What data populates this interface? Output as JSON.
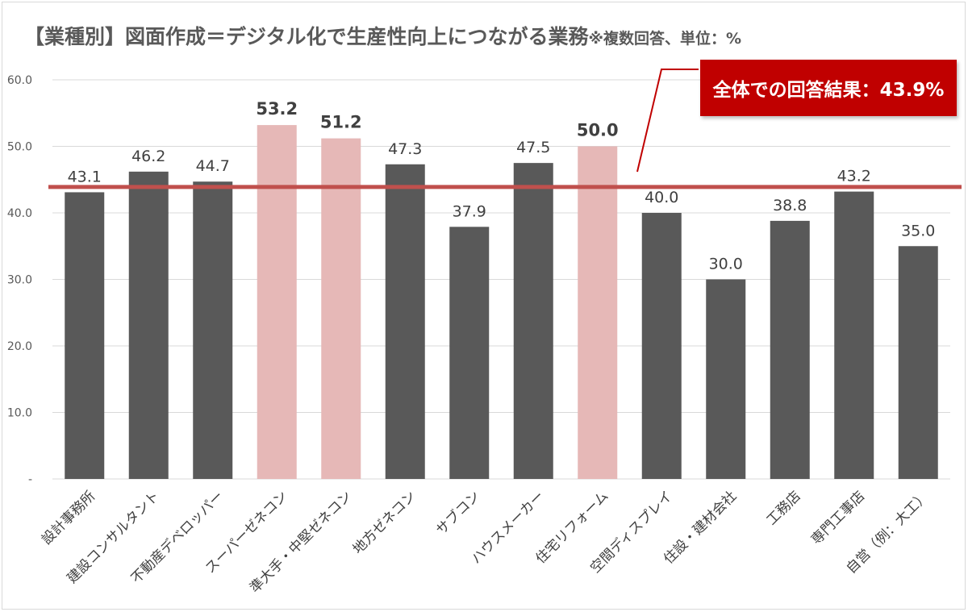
{
  "title": "【業種別】図面作成＝デジタル化で生産性向上につながる業務",
  "title_note": "※複数回答、単位：%",
  "callout": "全体での回答結果：43.9%",
  "colors": {
    "bar": "#595959",
    "highlight": "#e6b8b7",
    "average_line": "#c0504d",
    "callout_bg": "#c00000",
    "grid": "#d9d9d9"
  },
  "chart_data": {
    "type": "bar",
    "title": "【業種別】図面作成＝デジタル化で生産性向上につながる業務※複数回答、単位：%",
    "xlabel": "",
    "ylabel": "",
    "ylim": [
      0,
      60
    ],
    "yticks": [
      "-",
      "10.0",
      "20.0",
      "30.0",
      "40.0",
      "50.0",
      "60.0"
    ],
    "grid": true,
    "categories": [
      "設計事務所",
      "建設コンサルタント",
      "不動産デベロッパー",
      "スーパーゼネコン",
      "準大手・中堅ゼネコン",
      "地方ゼネコン",
      "サブコン",
      "ハウスメーカー",
      "住宅リフォーム",
      "空間ディスプレイ",
      "住設・建材会社",
      "工務店",
      "専門工事店",
      "自営（例：大工）"
    ],
    "values": [
      43.1,
      46.2,
      44.7,
      53.2,
      51.2,
      47.3,
      37.9,
      47.5,
      50.0,
      40.0,
      30.0,
      38.8,
      43.2,
      35.0
    ],
    "value_labels": [
      "43.1",
      "46.2",
      "44.7",
      "53.2",
      "51.2",
      "47.3",
      "37.9",
      "47.5",
      "50.0",
      "40.0",
      "30.0",
      "38.8",
      "43.2",
      "35.0"
    ],
    "highlighted": [
      "スーパーゼネコン",
      "準大手・中堅ゼネコン",
      "住宅リフォーム"
    ],
    "reference_line": {
      "value": 43.9,
      "label": "全体での回答結果：43.9%"
    }
  }
}
